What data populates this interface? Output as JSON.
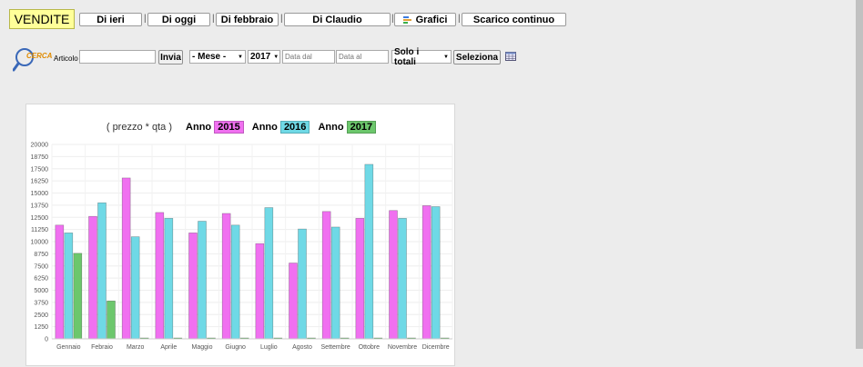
{
  "nav": {
    "vendite": "VENDITE",
    "buttons": [
      "Di ieri",
      "Di oggi",
      "Di febbraio",
      "Di Claudio",
      "Grafici",
      "Scarico continuo"
    ]
  },
  "search": {
    "logo_text": "CERCA",
    "articolo_label": "Articolo",
    "articolo_value": "",
    "invia": "Invia",
    "mese": "- Mese -",
    "anno": "2017",
    "data_dal": "Data dal",
    "data_al": "Data al",
    "totali": "Solo i totali",
    "seleziona": "Seleziona"
  },
  "legend": {
    "prefix": "( prezzo * qta )",
    "anno_label": "Anno",
    "years": [
      "2015",
      "2016",
      "2017"
    ]
  },
  "colors": {
    "2015": "#f070f0",
    "2016": "#6fd9e6",
    "2017": "#6cc76c"
  },
  "chart_data": {
    "type": "bar",
    "categories": [
      "Gennaio",
      "Febraio",
      "Marzo",
      "Aprile",
      "Maggio",
      "Giugno",
      "Luglio",
      "Agosto",
      "Settembre",
      "Ottobre",
      "Novembre",
      "Dicembre"
    ],
    "series": [
      {
        "name": "2015",
        "values": [
          11700,
          12600,
          16550,
          13000,
          10900,
          12900,
          9800,
          7800,
          13100,
          12400,
          13200,
          13700
        ]
      },
      {
        "name": "2016",
        "values": [
          10900,
          14000,
          10500,
          12400,
          12100,
          11700,
          13500,
          11300,
          11500,
          17950,
          12400,
          13600
        ]
      },
      {
        "name": "2017",
        "values": [
          8800,
          3900,
          0,
          0,
          0,
          0,
          0,
          0,
          0,
          0,
          0,
          0
        ]
      }
    ],
    "yticks": [
      0,
      1250,
      2500,
      3750,
      5000,
      6250,
      7500,
      8750,
      10000,
      11250,
      12500,
      13750,
      15000,
      16250,
      17500,
      18750,
      20000
    ],
    "ylim": [
      0,
      20000
    ],
    "grid": true
  }
}
